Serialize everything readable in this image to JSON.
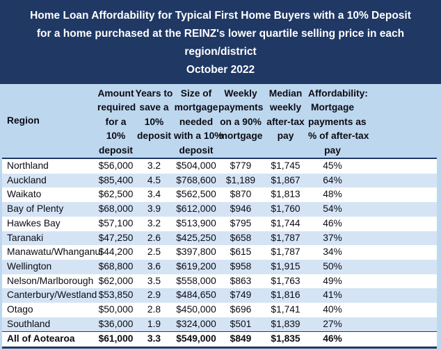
{
  "title": {
    "lines": [
      "Home Loan Affordability for Typical First Home Buyers with a 10% Deposit",
      "for a home purchased at the REINZ's lower quartile selling price in each",
      "region/district",
      "October 2022"
    ]
  },
  "colors": {
    "banner_navy": "#1F3864",
    "header_blue": "#BDD7EE",
    "band_blue": "#D5E4F4",
    "row_white": "#FFFFFF",
    "title_text": "#FFFFFF",
    "body_text": "#0B0B14"
  },
  "chart_data": {
    "type": "table",
    "title": "Home Loan Affordability for Typical First Home Buyers with a 10% Deposit for a home purchased at the REINZ's lower quartile selling price in each region/district",
    "subtitle": "October 2022",
    "columns": [
      "Region",
      "Amount required for a 10% deposit",
      "Years to save a 10% deposit",
      "Size of mortgage needed with a 10% deposit",
      "Weekly payments on a 90% mortgage",
      "Median weekly after-tax pay",
      "Affordability: Mortgage payments as % of after-tax pay"
    ],
    "columns_display": [
      "Region",
      "Amount\nrequired\nfor a\n10%\ndeposit",
      "Years to\nsave a\n10%\ndeposit",
      "Size of\nmortgage\nneeded\nwith a 10%\ndeposit",
      "Weekly\npayments\non a 90%\nmortgage",
      "Median\nweekly\nafter-tax\npay",
      "Affordability:\nMortgage\npayments as\n% of after-tax\npay"
    ],
    "rows": [
      [
        "Northland",
        "$56,000",
        "3.2",
        "$504,000",
        "$779",
        "$1,745",
        "45%"
      ],
      [
        "Auckland",
        "$85,400",
        "4.5",
        "$768,600",
        "$1,189",
        "$1,867",
        "64%"
      ],
      [
        "Waikato",
        "$62,500",
        "3.4",
        "$562,500",
        "$870",
        "$1,813",
        "48%"
      ],
      [
        "Bay of Plenty",
        "$68,000",
        "3.9",
        "$612,000",
        "$946",
        "$1,760",
        "54%"
      ],
      [
        "Hawkes Bay",
        "$57,100",
        "3.2",
        "$513,900",
        "$795",
        "$1,744",
        "46%"
      ],
      [
        "Taranaki",
        "$47,250",
        "2.6",
        "$425,250",
        "$658",
        "$1,787",
        "37%"
      ],
      [
        "Manawatu/Whanganui",
        "$44,200",
        "2.5",
        "$397,800",
        "$615",
        "$1,787",
        "34%"
      ],
      [
        "Wellington",
        "$68,800",
        "3.6",
        "$619,200",
        "$958",
        "$1,915",
        "50%"
      ],
      [
        "Nelson/Marlborough",
        "$62,000",
        "3.5",
        "$558,000",
        "$863",
        "$1,763",
        "49%"
      ],
      [
        "Canterbury/Westland",
        "$53,850",
        "2.9",
        "$484,650",
        "$749",
        "$1,816",
        "41%"
      ],
      [
        "Otago",
        "$50,000",
        "2.8",
        "$450,000",
        "$696",
        "$1,741",
        "40%"
      ],
      [
        "Southland",
        "$36,000",
        "1.9",
        "$324,000",
        "$501",
        "$1,839",
        "27%"
      ]
    ],
    "total_row": [
      "All of Aotearoa",
      "$61,000",
      "3.3",
      "$549,000",
      "$849",
      "$1,835",
      "46%"
    ]
  }
}
